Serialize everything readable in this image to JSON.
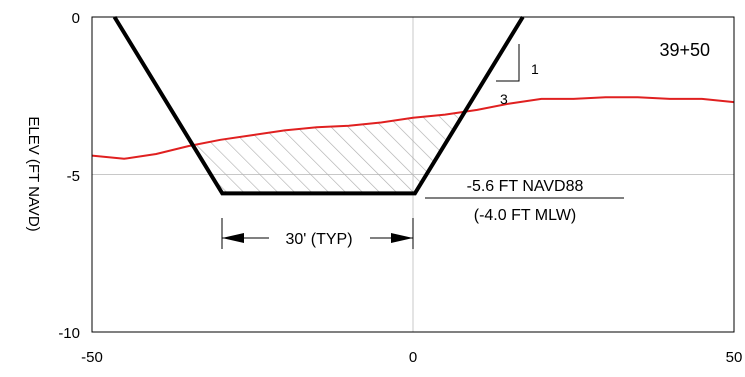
{
  "station_label": "39+50",
  "y_axis_label": "ELEV (FT NAVD)",
  "slope": {
    "rise": "1",
    "run": "3"
  },
  "bottom_width_label": "30' (TYP)",
  "depth_label_line1": "-5.6 FT NAVD88",
  "depth_label_line2": "(-4.0 FT MLW)",
  "chart_data": {
    "type": "line",
    "xlim": [
      -50,
      50
    ],
    "ylim": [
      -10,
      0
    ],
    "x_ticks": [
      "-50",
      "0",
      "50"
    ],
    "y_ticks": [
      "0",
      "-5",
      "-10"
    ],
    "grid": "center lines at x=0 and y=-5",
    "colors": {
      "existing_grade": "#e02020",
      "design_section": "#000000",
      "hatch": "#b0b0b0"
    },
    "series": [
      {
        "role": "existing grade",
        "x": [
          -50,
          -45,
          -40,
          -35,
          -30,
          -25,
          -20,
          -15,
          -10,
          -5,
          0,
          5,
          10,
          15,
          20,
          25,
          30,
          35,
          40,
          45,
          50
        ],
        "y": [
          -4.4,
          -4.5,
          -4.35,
          -4.1,
          -3.9,
          -3.75,
          -3.6,
          -3.5,
          -3.45,
          -3.35,
          -3.2,
          -3.1,
          -2.95,
          -2.75,
          -2.6,
          -2.6,
          -2.55,
          -2.55,
          -2.6,
          -2.6,
          -2.7
        ]
      },
      {
        "role": "design channel section",
        "x": [
          -46.5,
          -29.7,
          0.3,
          17.1
        ],
        "y": [
          0,
          -5.6,
          -5.6,
          0
        ]
      }
    ]
  }
}
